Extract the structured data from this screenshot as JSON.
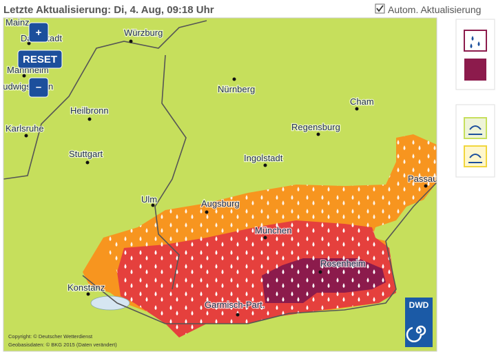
{
  "header": {
    "title": "Letzte Aktualisierung: Di, 4. Aug, 09:18 Uhr",
    "auto_update": "Autom. Aktualisierung"
  },
  "map": {
    "controls": {
      "zoom_in": "+",
      "reset": "RESET",
      "zoom_out": "–"
    },
    "cities": [
      "Mainz",
      "Darmstadt",
      "Würzburg",
      "Mannheim",
      "Ludwigshafen",
      "Heilbronn",
      "Nürnberg",
      "Cham",
      "Karlsruhe",
      "Regensburg",
      "Stuttgart",
      "Ingolstadt",
      "Passau",
      "Ulm",
      "Augsburg",
      "München",
      "Rosenheim",
      "Konstanz",
      "Garmisch-Part."
    ],
    "copyright": [
      "Copyright: © Deutscher Wetterdienst",
      "Geobasisdaten: © BKG 2015 (Daten verändert)"
    ],
    "logo": "DWD"
  }
}
